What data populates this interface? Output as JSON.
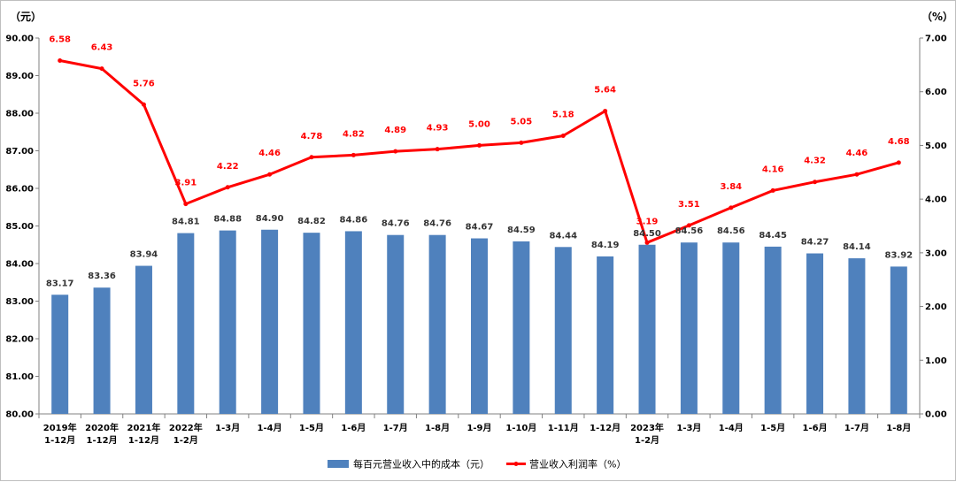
{
  "chart_data": {
    "type": "bar",
    "categories": [
      [
        "2019年",
        "1-12月"
      ],
      [
        "2020年",
        "1-12月"
      ],
      [
        "2021年",
        "1-12月"
      ],
      [
        "2022年",
        "1-2月"
      ],
      [
        "1-3月"
      ],
      [
        "1-4月"
      ],
      [
        "1-5月"
      ],
      [
        "1-6月"
      ],
      [
        "1-7月"
      ],
      [
        "1-8月"
      ],
      [
        "1-9月"
      ],
      [
        "1-10月"
      ],
      [
        "1-11月"
      ],
      [
        "1-12月"
      ],
      [
        "2023年",
        "1-2月"
      ],
      [
        "1-3月"
      ],
      [
        "1-4月"
      ],
      [
        "1-5月"
      ],
      [
        "1-6月"
      ],
      [
        "1-7月"
      ],
      [
        "1-8月"
      ]
    ],
    "series": [
      {
        "name": "每百元营业收入中的成本（元）",
        "type": "bar",
        "axis": "left",
        "color": "#4f81bd",
        "values": [
          83.17,
          83.36,
          83.94,
          84.81,
          84.88,
          84.9,
          84.82,
          84.86,
          84.76,
          84.76,
          84.67,
          84.59,
          84.44,
          84.19,
          84.5,
          84.56,
          84.56,
          84.45,
          84.27,
          84.14,
          83.92
        ],
        "labels": [
          "83.17",
          "83.36",
          "83.94",
          "84.81",
          "84.88",
          "84.90",
          "84.82",
          "84.86",
          "84.76",
          "84.76",
          "84.67",
          "84.59",
          "84.44",
          "84.19",
          "84.50",
          "84.56",
          "84.56",
          "84.45",
          "84.27",
          "84.14",
          "83.92"
        ]
      },
      {
        "name": "营业收入利润率（%）",
        "type": "line",
        "axis": "right",
        "color": "#ff0000",
        "values": [
          6.58,
          6.43,
          5.76,
          3.91,
          4.22,
          4.46,
          4.78,
          4.82,
          4.89,
          4.93,
          5.0,
          5.05,
          5.18,
          5.64,
          3.19,
          3.51,
          3.84,
          4.16,
          4.32,
          4.46,
          4.68
        ],
        "labels": [
          "6.58",
          "6.43",
          "5.76",
          "3.91",
          "4.22",
          "4.46",
          "4.78",
          "4.82",
          "4.89",
          "4.93",
          "5.00",
          "5.05",
          "5.18",
          "5.64",
          "3.19",
          "3.51",
          "3.84",
          "4.16",
          "4.32",
          "4.46",
          "4.68"
        ]
      }
    ],
    "y_left": {
      "unit": "（元）",
      "ylim": [
        80,
        90
      ],
      "ticks": [
        "80.00",
        "81.00",
        "82.00",
        "83.00",
        "84.00",
        "85.00",
        "86.00",
        "87.00",
        "88.00",
        "89.00",
        "90.00"
      ]
    },
    "y_right": {
      "unit": "（%）",
      "ylim": [
        0,
        7
      ],
      "ticks": [
        "0.00",
        "1.00",
        "2.00",
        "3.00",
        "4.00",
        "5.00",
        "6.00",
        "7.00"
      ]
    },
    "grid": false,
    "legend_position": "bottom-center"
  }
}
